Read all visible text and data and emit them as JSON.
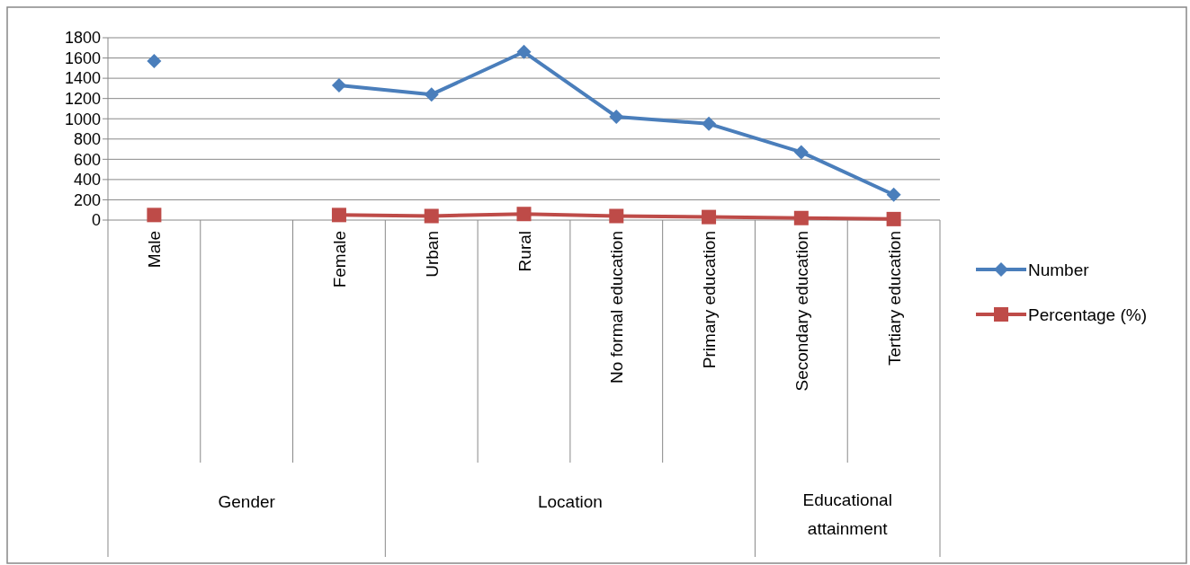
{
  "chart_data": {
    "type": "line",
    "categories": [
      "Male",
      null,
      "Female",
      "Urban",
      "Rural",
      "No formal education",
      "Primary education",
      "Secondary education",
      "Tertiary education"
    ],
    "series": [
      {
        "name": "Number",
        "color": "#4a7ebb",
        "marker": "diamond",
        "values": [
          1570,
          null,
          1330,
          1240,
          1660,
          1020,
          950,
          670,
          250
        ]
      },
      {
        "name": "Percentage (%)",
        "color": "#be4b48",
        "marker": "square",
        "values": [
          50,
          null,
          50,
          40,
          60,
          40,
          30,
          20,
          10
        ]
      }
    ],
    "annotations": [
      "Gender",
      "Location",
      "Educational attainment"
    ],
    "ylim": [
      0,
      1800
    ],
    "yticks": [
      0,
      200,
      400,
      600,
      800,
      1000,
      1200,
      1400,
      1600,
      1800
    ],
    "grid": "y",
    "legend": "right"
  }
}
